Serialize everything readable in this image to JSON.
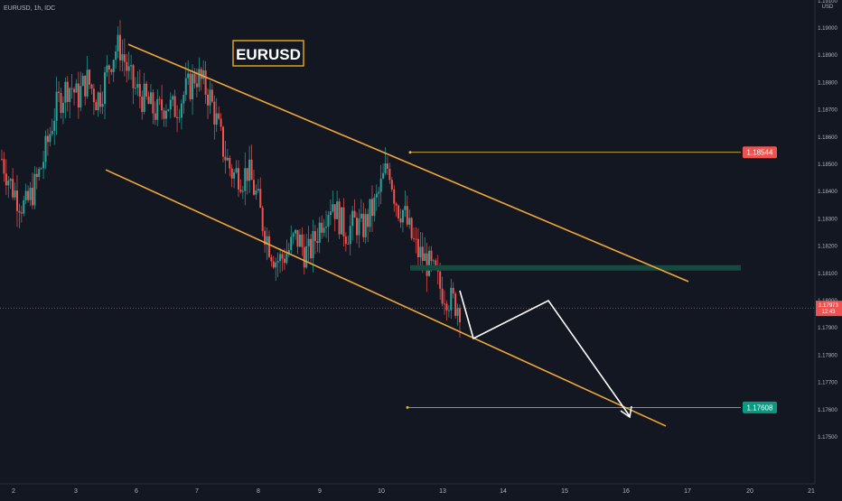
{
  "header": {
    "symbol_line": "EURUSD, 1h, IDC"
  },
  "scale_label": "USD",
  "title_badge": "EURUSD",
  "colors": {
    "background": "#131722",
    "up_candle": "#26a69a",
    "down_candle": "#ef5350",
    "channel": "#f0a73a",
    "level_line": "#e0b43a",
    "resistance_zone": "#164a3e",
    "projection": "#ffffff",
    "axis_text": "#b2b5be",
    "title_border": "#e0a020"
  },
  "price_labels": {
    "upper": {
      "value": "1.18544",
      "color": "#ef5350"
    },
    "lower": {
      "value": "1.17608",
      "color": "#089981"
    },
    "current": {
      "value": "1.17973",
      "sub": "12:43",
      "color": "#ef5350"
    }
  },
  "chart_data": {
    "type": "candlestick",
    "title": "EURUSD",
    "ylabel": "USD",
    "ylim": [
      1.1745,
      1.1915
    ],
    "y_ticks": [
      "1.17500",
      "1.17600",
      "1.17700",
      "1.17800",
      "1.17900",
      "1.18000",
      "1.18100",
      "1.18200",
      "1.18300",
      "1.18400",
      "1.18500",
      "1.18600",
      "1.18700",
      "1.18800",
      "1.18900",
      "1.19000",
      "1.19100"
    ],
    "x_ticks": [
      "2",
      "3",
      "6",
      "7",
      "8",
      "9",
      "10",
      "13",
      "14",
      "15",
      "16",
      "17",
      "20",
      "21"
    ],
    "candles_close_path": [
      1.1852,
      1.1847,
      1.1842,
      1.1839,
      1.1836,
      1.1834,
      1.1838,
      1.1842,
      1.1847,
      1.1853,
      1.186,
      1.1868,
      1.1873,
      1.1876,
      1.1879,
      1.1878,
      1.1874,
      1.1878,
      1.1881,
      1.1878,
      1.1874,
      1.1876,
      1.1882,
      1.1888,
      1.1892,
      1.1893,
      1.1888,
      1.1882,
      1.1878,
      1.1876,
      1.1874,
      1.1872,
      1.187,
      1.1869,
      1.1871,
      1.1873,
      1.187,
      1.1871,
      1.1874,
      1.1877,
      1.1879,
      1.1883,
      1.1881,
      1.1878,
      1.1875,
      1.1869,
      1.1862,
      1.1855,
      1.185,
      1.1846,
      1.1847,
      1.1845,
      1.1848,
      1.1843,
      1.1838,
      1.183,
      1.1824,
      1.1819,
      1.1815,
      1.1815,
      1.1817,
      1.1819,
      1.1823,
      1.1822,
      1.1818,
      1.1817,
      1.1821,
      1.1826,
      1.1831,
      1.1834,
      1.1837,
      1.1832,
      1.1828,
      1.1825,
      1.1827,
      1.1829,
      1.1826,
      1.1828,
      1.1832,
      1.1835,
      1.184,
      1.1846,
      1.185,
      1.184,
      1.1834,
      1.1833,
      1.1827,
      1.1822,
      1.1818,
      1.1816,
      1.1814,
      1.1811,
      1.1808,
      1.1804,
      1.1803,
      1.18,
      1.1799,
      1.1798
    ],
    "channel_upper": {
      "from": [
        "6",
        1.1894
      ],
      "to": [
        "17",
        1.1807
      ]
    },
    "channel_lower": {
      "from": [
        "3",
        1.1848
      ],
      "to": [
        "16",
        1.1754
      ]
    },
    "resistance_zone": [
      1.1811,
      1.1813
    ],
    "levels": [
      1.18544,
      1.17608
    ],
    "current_price": 1.17973,
    "projection": [
      1.1799,
      1.181,
      1.1768
    ]
  }
}
